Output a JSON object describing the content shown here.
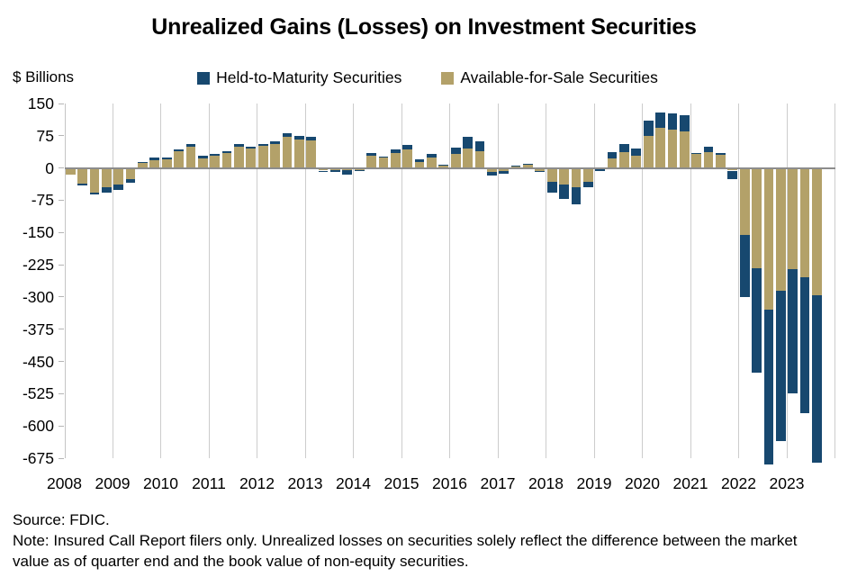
{
  "title": "Unrealized Gains (Losses) on Investment Securities",
  "y_units_label": "$ Billions",
  "legend": [
    {
      "label": "Held-to-Maturity Securities",
      "color": "#17486f"
    },
    {
      "label": "Available-for-Sale Securities",
      "color": "#b3a169"
    }
  ],
  "footer": {
    "source": "Source: FDIC.",
    "note": "Note: Insured Call Report filers only. Unrealized losses on securities solely reflect the difference between the market value as of quarter end and the book value of non-equity securities."
  },
  "chart_data": {
    "type": "bar",
    "stacked": true,
    "title": "Unrealized Gains (Losses) on Investment Securities",
    "xlabel": "",
    "ylabel": "$ Billions",
    "ylim": [
      -675,
      150
    ],
    "yticks": [
      150,
      75,
      0,
      -75,
      -150,
      -225,
      -300,
      -375,
      -450,
      -525,
      -600,
      -675
    ],
    "grid": "vertical-year-boundaries-only",
    "legend_position": "top",
    "years": [
      "2008",
      "2009",
      "2010",
      "2011",
      "2012",
      "2013",
      "2014",
      "2015",
      "2016",
      "2017",
      "2018",
      "2019",
      "2020",
      "2021",
      "2022",
      "2023"
    ],
    "categories": [
      "2008 Q1",
      "2008 Q2",
      "2008 Q3",
      "2008 Q4",
      "2009 Q1",
      "2009 Q2",
      "2009 Q3",
      "2009 Q4",
      "2010 Q1",
      "2010 Q2",
      "2010 Q3",
      "2010 Q4",
      "2011 Q1",
      "2011 Q2",
      "2011 Q3",
      "2011 Q4",
      "2012 Q1",
      "2012 Q2",
      "2012 Q3",
      "2012 Q4",
      "2013 Q1",
      "2013 Q2",
      "2013 Q3",
      "2013 Q4",
      "2014 Q1",
      "2014 Q2",
      "2014 Q3",
      "2014 Q4",
      "2015 Q1",
      "2015 Q2",
      "2015 Q3",
      "2015 Q4",
      "2016 Q1",
      "2016 Q2",
      "2016 Q3",
      "2016 Q4",
      "2017 Q1",
      "2017 Q2",
      "2017 Q3",
      "2017 Q4",
      "2018 Q1",
      "2018 Q2",
      "2018 Q3",
      "2018 Q4",
      "2019 Q1",
      "2019 Q2",
      "2019 Q3",
      "2019 Q4",
      "2020 Q1",
      "2020 Q2",
      "2020 Q3",
      "2020 Q4",
      "2021 Q1",
      "2021 Q2",
      "2021 Q3",
      "2021 Q4",
      "2022 Q1",
      "2022 Q2",
      "2022 Q3",
      "2022 Q4",
      "2023 Q1",
      "2023 Q2",
      "2023 Q3"
    ],
    "series": [
      {
        "name": "Held-to-Maturity Securities",
        "color": "#17486f",
        "values": [
          0,
          -4,
          -5,
          -13,
          -14,
          -10,
          2,
          5,
          5,
          6,
          7,
          6,
          4,
          4,
          6,
          5,
          5,
          7,
          8,
          8,
          8,
          -2,
          -4,
          -12,
          -3,
          5,
          3,
          8,
          10,
          6,
          7,
          2,
          15,
          26,
          24,
          -7,
          -6,
          1,
          1,
          -3,
          -25,
          -34,
          -39,
          -12,
          -5,
          14,
          19,
          18,
          35,
          37,
          38,
          36,
          2,
          14,
          4,
          -19,
          -146,
          -243,
          -360,
          -350,
          -290,
          -315,
          -390
        ]
      },
      {
        "name": "Available-for-Sale Securities",
        "color": "#b3a169",
        "values": [
          -16,
          -36,
          -57,
          -44,
          -38,
          -25,
          12,
          19,
          20,
          38,
          49,
          22,
          28,
          35,
          49,
          45,
          51,
          55,
          72,
          67,
          64,
          -6,
          -5,
          -4,
          -4,
          29,
          24,
          35,
          43,
          14,
          25,
          6,
          33,
          46,
          39,
          -10,
          -8,
          4,
          9,
          -7,
          -33,
          -38,
          -45,
          -33,
          -2,
          23,
          37,
          28,
          75,
          93,
          90,
          86,
          32,
          36,
          30,
          -6,
          -155,
          -234,
          -330,
          -285,
          -235,
          -255,
          -295
        ]
      }
    ],
    "stack_order_note": "Available-for-Sale stacked from zero, Held-to-Maturity stacked at bar tip"
  }
}
